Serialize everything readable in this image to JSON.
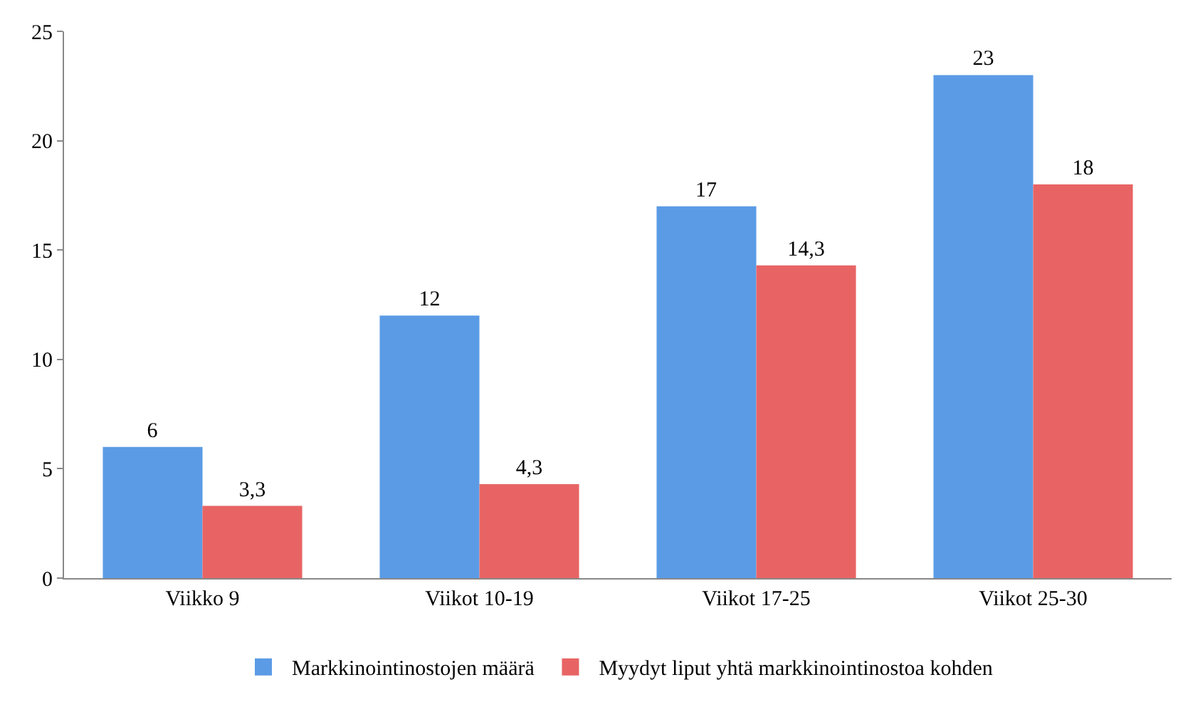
{
  "chart_data": {
    "type": "bar",
    "categories": [
      "Viikko 9",
      "Viikot 10-19",
      "Viikot 17-25",
      "Viikot 25-30"
    ],
    "series": [
      {
        "name": "Markkinointinostojen määrä",
        "color": "#5b9be6",
        "values": [
          6,
          12,
          17,
          23
        ],
        "value_labels": [
          "6",
          "12",
          "17",
          "23"
        ]
      },
      {
        "name": "Myydyt liput yhtä markkinointinostoa kohden",
        "color": "#e86464",
        "values": [
          3.3,
          4.3,
          14.3,
          18
        ],
        "value_labels": [
          "3,3",
          "4,3",
          "14,3",
          "18"
        ]
      }
    ],
    "ylim": [
      0,
      25
    ],
    "yticks": [
      0,
      5,
      10,
      15,
      20,
      25
    ],
    "grid": false,
    "legend": "bottom"
  }
}
